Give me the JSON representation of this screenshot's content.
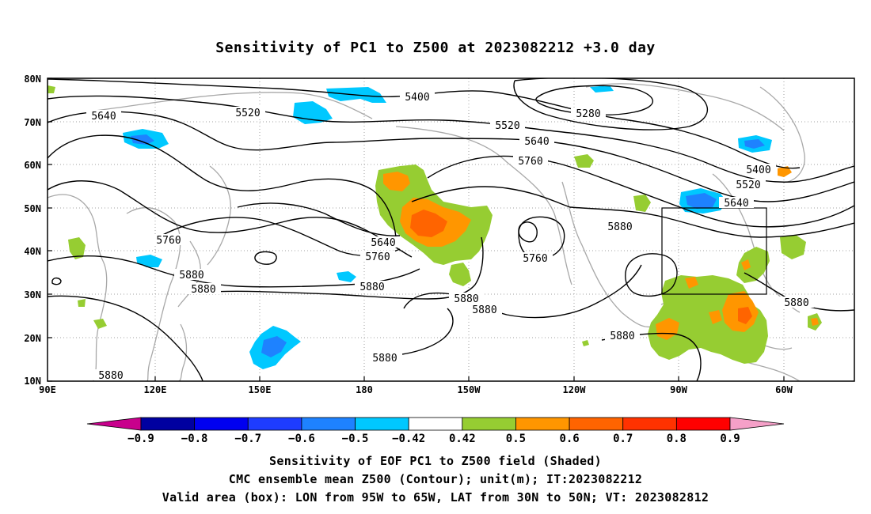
{
  "title": "Sensitivity of PC1 to Z500 at 2023082212 +3.0 day",
  "axes": {
    "y_ticks": [
      "80N",
      "70N",
      "60N",
      "50N",
      "40N",
      "30N",
      "20N",
      "10N"
    ],
    "x_ticks": [
      "90E",
      "120E",
      "150E",
      "180",
      "150W",
      "120W",
      "90W",
      "60W"
    ]
  },
  "contour_labels": [
    "5400",
    "5520",
    "5640",
    "5280",
    "5520",
    "5640",
    "5760",
    "5400",
    "5520",
    "5640",
    "5760",
    "5640",
    "5760",
    "5880",
    "5880",
    "5760",
    "5880",
    "5880",
    "5880",
    "5880",
    "5880",
    "5880",
    "5880"
  ],
  "box": {
    "lon_from": "95W",
    "lon_to": "65W",
    "lat_from": "30N",
    "lat_to": "50N"
  },
  "colorbar": {
    "labels": [
      "-0.9",
      "-0.8",
      "-0.7",
      "-0.6",
      "-0.5",
      "-0.42",
      "0.42",
      "0.5",
      "0.6",
      "0.7",
      "0.8",
      "0.9"
    ],
    "colors": [
      "#c8008c",
      "#0000a0",
      "#0000f0",
      "#1e3cff",
      "#1e82ff",
      "#00c8ff",
      "#ffffff",
      "#96cd32",
      "#ff9600",
      "#ff6400",
      "#ff3200",
      "#ff0000",
      "#f5a0c8"
    ]
  },
  "captions": {
    "line1": "Sensitivity of EOF PC1 to Z500 field (Shaded)",
    "line2": "CMC ensemble mean Z500 (Contour); unit(m); IT:2023082212",
    "line3": "Valid area (box): LON from 95W to 65W, LAT from 30N to 50N; VT: 2023082812"
  }
}
